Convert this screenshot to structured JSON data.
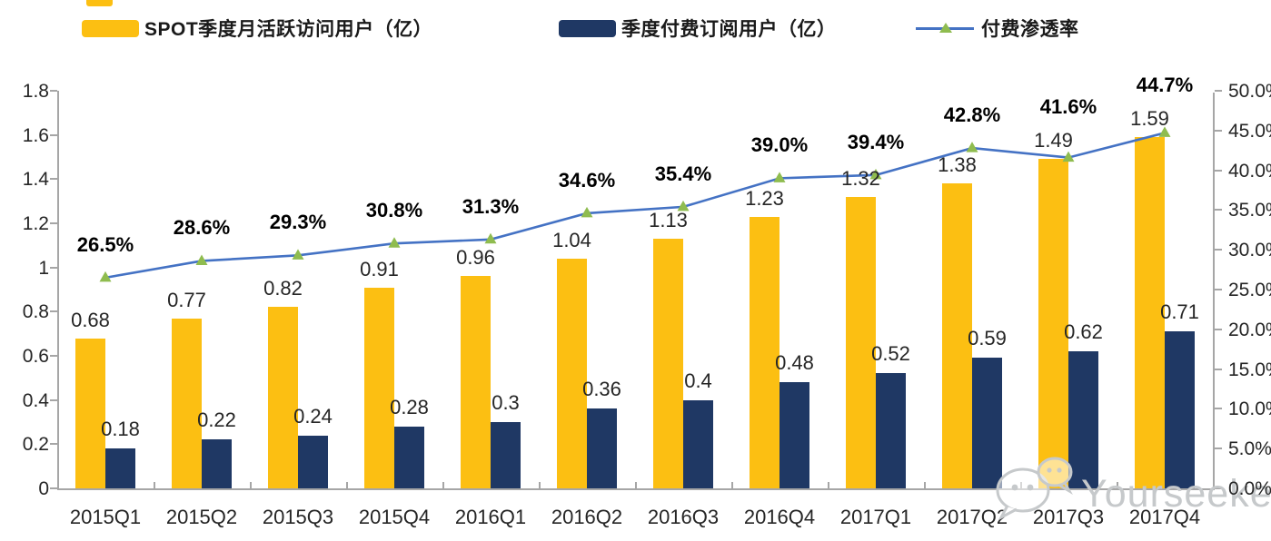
{
  "chart_data": {
    "type": "bar+line",
    "title": "",
    "categories": [
      "2015Q1",
      "2015Q2",
      "2015Q3",
      "2015Q4",
      "2016Q1",
      "2016Q2",
      "2016Q3",
      "2016Q4",
      "2017Q1",
      "2017Q2",
      "2017Q3",
      "2017Q4"
    ],
    "series": [
      {
        "name": "SPOT季度月活跃访问用户（亿）",
        "type": "bar",
        "axis": "left",
        "color": "#FCBF12",
        "values": [
          0.68,
          0.77,
          0.82,
          0.91,
          0.96,
          1.04,
          1.13,
          1.23,
          1.32,
          1.38,
          1.49,
          1.59
        ],
        "labels": [
          "0.68",
          "0.77",
          "0.82",
          "0.91",
          "0.96",
          "1.04",
          "1.13",
          "1.23",
          "1.32",
          "1.38",
          "1.49",
          "1.59"
        ]
      },
      {
        "name": "季度付费订阅用户（亿）",
        "type": "bar",
        "axis": "left",
        "color": "#1F3864",
        "values": [
          0.18,
          0.22,
          0.24,
          0.28,
          0.3,
          0.36,
          0.4,
          0.48,
          0.52,
          0.59,
          0.62,
          0.71
        ],
        "labels": [
          "0.18",
          "0.22",
          "0.24",
          "0.28",
          "0.3",
          "0.36",
          "0.4",
          "0.48",
          "0.52",
          "0.59",
          "0.62",
          "0.71"
        ]
      },
      {
        "name": "付费渗透率",
        "type": "line",
        "axis": "right",
        "color": "#4472C4",
        "marker": "triangle",
        "marker_color": "#8FBC4F",
        "values": [
          26.5,
          28.6,
          29.3,
          30.8,
          31.3,
          34.6,
          35.4,
          39.0,
          39.4,
          42.8,
          41.6,
          44.7
        ],
        "labels": [
          "26.5%",
          "28.6%",
          "29.3%",
          "30.8%",
          "31.3%",
          "34.6%",
          "35.4%",
          "39.0%",
          "39.4%",
          "42.8%",
          "41.6%",
          "44.7%"
        ]
      }
    ],
    "left_axis": {
      "min": 0,
      "max": 1.8,
      "tick_step": 0.2,
      "tick_labels": [
        "0",
        "0.2",
        "0.4",
        "0.6",
        "0.8",
        "1",
        "1.2",
        "1.4",
        "1.6",
        "1.8"
      ]
    },
    "right_axis": {
      "min": 0,
      "max": 50,
      "tick_step": 5,
      "tick_labels": [
        "0.0%",
        "5.0%",
        "10.0%",
        "15.0%",
        "20.0%",
        "25.0%",
        "30.0%",
        "35.0%",
        "40.0%",
        "45.0%",
        "50.0%"
      ]
    },
    "legend_position": "top",
    "grid": false
  },
  "watermark": {
    "text": "Yourseeker",
    "icon": "wechat-icon"
  },
  "colors": {
    "axis": "#A6A6A6",
    "bar_mau": "#FCBF12",
    "bar_sub": "#1F3864",
    "line": "#4472C4",
    "marker": "#8FBC4F",
    "value_label": "#262626",
    "pct_label": "#000000",
    "watermark": "#C6C9CB"
  }
}
